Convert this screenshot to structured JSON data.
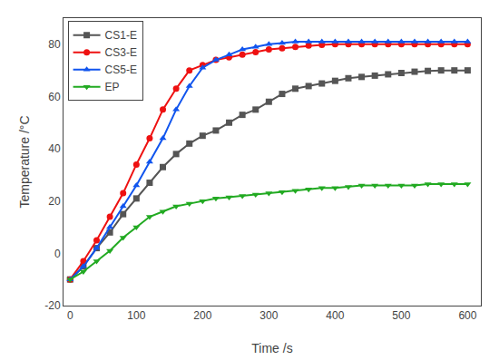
{
  "chart_data": {
    "type": "line",
    "xlabel": "Time /s",
    "ylabel": "Temperature /°C",
    "xlim": [
      -10,
      620
    ],
    "ylim": [
      -20,
      90
    ],
    "xticks": [
      0,
      100,
      200,
      300,
      400,
      500,
      600
    ],
    "yticks": [
      -20,
      0,
      20,
      40,
      60,
      80
    ],
    "grid": false,
    "legend": "upper left",
    "x": [
      0,
      20,
      40,
      60,
      80,
      100,
      120,
      140,
      160,
      180,
      200,
      220,
      240,
      260,
      280,
      300,
      320,
      340,
      360,
      380,
      400,
      420,
      440,
      460,
      480,
      500,
      520,
      540,
      560,
      580,
      600
    ],
    "series": [
      {
        "name": "CS1-E",
        "color": "#555555",
        "marker": "square",
        "values": [
          -10,
          -5,
          2,
          8,
          15,
          21,
          27,
          33,
          38,
          42,
          45,
          47,
          50,
          53,
          55,
          58,
          61,
          63,
          64,
          65,
          66,
          67,
          67.5,
          68,
          68.5,
          69,
          69.5,
          69.8,
          70,
          70,
          70
        ]
      },
      {
        "name": "CS3-E",
        "color": "#ee1111",
        "marker": "circle",
        "values": [
          -10,
          -3,
          5,
          14,
          23,
          34,
          44,
          55,
          63,
          70,
          72,
          74,
          75,
          76,
          77,
          78,
          78.5,
          79,
          79.5,
          79.8,
          80,
          80,
          80,
          80,
          80,
          80,
          80,
          80,
          80,
          80,
          80
        ]
      },
      {
        "name": "CS5-E",
        "color": "#1155ee",
        "marker": "triangle-up",
        "values": [
          -10,
          -5,
          2,
          10,
          18,
          26,
          35,
          44,
          55,
          64,
          71,
          74,
          76,
          78,
          79,
          80,
          80.5,
          81,
          81,
          81,
          81,
          81,
          81,
          81,
          81,
          81,
          81,
          81,
          81,
          81,
          81
        ]
      },
      {
        "name": "EP",
        "color": "#22aa22",
        "marker": "triangle-down",
        "values": [
          -10,
          -7,
          -3,
          1,
          6,
          10,
          14,
          16,
          18,
          19,
          20,
          21,
          21.5,
          22,
          22.5,
          23,
          23.5,
          24,
          24.5,
          25,
          25,
          25.5,
          26,
          26,
          26,
          26,
          26,
          26.5,
          26.5,
          26.5,
          26.5
        ]
      }
    ]
  }
}
